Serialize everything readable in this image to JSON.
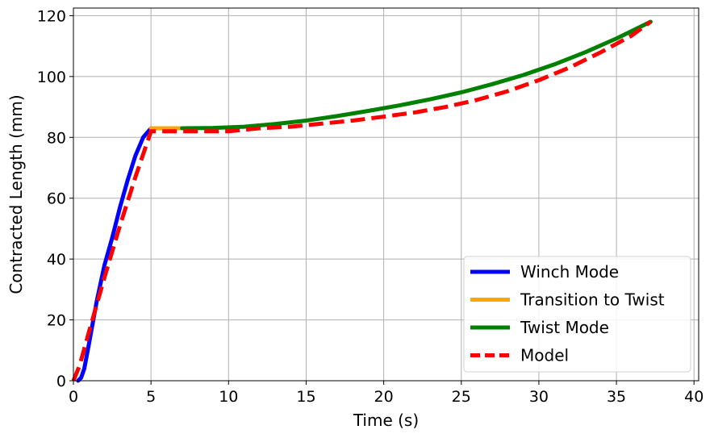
{
  "chart_data": {
    "type": "line",
    "title": "",
    "xlabel": "Time (s)",
    "ylabel": "Contracted Length (mm)",
    "xlim": [
      0,
      40.3
    ],
    "ylim": [
      0,
      122.5
    ],
    "xticks": [
      0,
      5,
      10,
      15,
      20,
      25,
      30,
      35,
      40
    ],
    "yticks": [
      0,
      20,
      40,
      60,
      80,
      100,
      120
    ],
    "grid": true,
    "legend_position": "lower-right",
    "series": [
      {
        "name": "Winch Mode",
        "color": "#0000ff",
        "style": "solid",
        "x": [
          0.3,
          0.5,
          0.7,
          1.0,
          1.5,
          2.0,
          2.5,
          3.0,
          3.5,
          4.0,
          4.5,
          5.0
        ],
        "y": [
          0,
          1,
          4,
          12,
          26,
          38,
          47,
          57,
          66,
          74,
          80,
          83
        ]
      },
      {
        "name": "Transition to Twist",
        "color": "#ffa500",
        "style": "solid",
        "x": [
          5.0,
          6.0,
          7.0
        ],
        "y": [
          83,
          83,
          83
        ]
      },
      {
        "name": "Twist Mode",
        "color": "#008000",
        "style": "solid",
        "x": [
          7,
          9,
          11,
          13,
          15,
          17,
          19,
          21,
          23,
          25,
          27,
          29,
          31,
          33,
          35,
          37.2
        ],
        "y": [
          83,
          83.1,
          83.5,
          84.4,
          85.5,
          87,
          88.7,
          90.5,
          92.5,
          94.8,
          97.5,
          100.5,
          104,
          108,
          112.5,
          118
        ]
      },
      {
        "name": "Model",
        "color": "#ff0000",
        "style": "dashed",
        "x": [
          0.0,
          0.4,
          1.0,
          2.0,
          3.0,
          4.0,
          5.0,
          6.0,
          8.0,
          10,
          12,
          14,
          16,
          18,
          20,
          22,
          24,
          26,
          28,
          30,
          32,
          34,
          36,
          37.2
        ],
        "y": [
          0,
          5,
          16,
          34,
          51,
          67,
          82,
          82,
          82,
          82,
          83,
          83.5,
          84.5,
          85.5,
          86.8,
          88.2,
          90,
          92.3,
          95.2,
          98.8,
          103,
          108,
          113.5,
          118
        ]
      }
    ]
  }
}
